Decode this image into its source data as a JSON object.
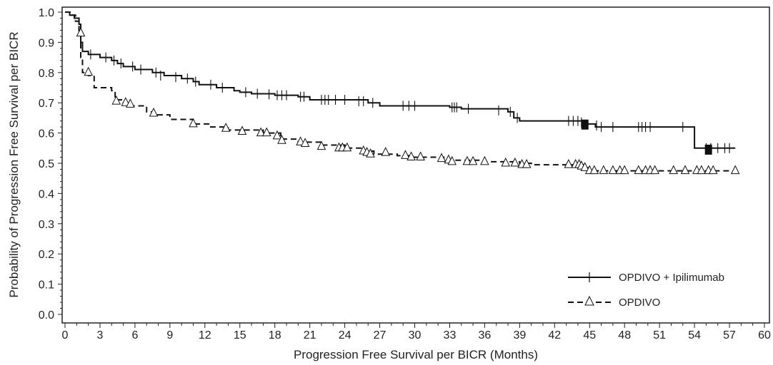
{
  "chart_data": {
    "type": "line",
    "title": "",
    "xlabel": "Progression Free Survival per BICR (Months)",
    "ylabel": "Probability of Progression Free Survival per BICR",
    "xlim": [
      0,
      60
    ],
    "ylim": [
      0,
      1.0
    ],
    "x_ticks": [
      0,
      3,
      6,
      9,
      12,
      15,
      18,
      21,
      24,
      27,
      30,
      33,
      36,
      39,
      42,
      45,
      48,
      51,
      54,
      57,
      60
    ],
    "x_tick_labels": [
      "0",
      "3",
      "6",
      "9",
      "12",
      "15",
      "18",
      "21",
      "24",
      "27",
      "30",
      "33",
      "36",
      "39",
      "42",
      "45",
      "48",
      "51",
      "54",
      "57",
      "60"
    ],
    "y_ticks": [
      0,
      0.1,
      0.2,
      0.3,
      0.4,
      0.5,
      0.6,
      0.7,
      0.8,
      0.9,
      1.0
    ],
    "y_tick_labels": [
      "0.0",
      "0.1",
      "0.2",
      "0.3",
      "0.4",
      "0.5",
      "0.6",
      "0.7",
      "0.8",
      "0.9",
      "1.0"
    ],
    "grid": false,
    "legend_position": "bottom-right",
    "series": [
      {
        "name": "OPDIVO + Ipilimumab",
        "line_style": "solid",
        "censor_marker": "plus",
        "color": "#111111",
        "points": [
          [
            0,
            1.0
          ],
          [
            0.4,
            0.99
          ],
          [
            0.8,
            0.98
          ],
          [
            1.2,
            0.96
          ],
          [
            1.35,
            0.9
          ],
          [
            1.5,
            0.87
          ],
          [
            2.0,
            0.86
          ],
          [
            3,
            0.85
          ],
          [
            4,
            0.84
          ],
          [
            4.5,
            0.83
          ],
          [
            5,
            0.82
          ],
          [
            6,
            0.81
          ],
          [
            7.5,
            0.8
          ],
          [
            8.5,
            0.79
          ],
          [
            10,
            0.78
          ],
          [
            11,
            0.77
          ],
          [
            11.5,
            0.76
          ],
          [
            13,
            0.75
          ],
          [
            14.5,
            0.74
          ],
          [
            15,
            0.735
          ],
          [
            16,
            0.73
          ],
          [
            18,
            0.725
          ],
          [
            20,
            0.72
          ],
          [
            21,
            0.71
          ],
          [
            26,
            0.7
          ],
          [
            27,
            0.69
          ],
          [
            33,
            0.685
          ],
          [
            34,
            0.68
          ],
          [
            38,
            0.67
          ],
          [
            38.5,
            0.65
          ],
          [
            39,
            0.64
          ],
          [
            44.5,
            0.63
          ],
          [
            45.5,
            0.62
          ],
          [
            53.5,
            0.62
          ],
          [
            54,
            0.55
          ],
          [
            57.5,
            0.55
          ]
        ],
        "censored": [
          [
            2.2,
            0.86
          ],
          [
            3.5,
            0.85
          ],
          [
            4.2,
            0.84
          ],
          [
            4.8,
            0.83
          ],
          [
            5.8,
            0.82
          ],
          [
            6.5,
            0.81
          ],
          [
            7.8,
            0.8
          ],
          [
            8.2,
            0.79
          ],
          [
            9.5,
            0.785
          ],
          [
            10.5,
            0.78
          ],
          [
            11.2,
            0.77
          ],
          [
            12.5,
            0.76
          ],
          [
            13.5,
            0.75
          ],
          [
            15.5,
            0.735
          ],
          [
            16.5,
            0.73
          ],
          [
            17.5,
            0.728
          ],
          [
            18.2,
            0.725
          ],
          [
            18.6,
            0.725
          ],
          [
            19.0,
            0.725
          ],
          [
            20.2,
            0.72
          ],
          [
            20.5,
            0.72
          ],
          [
            22.0,
            0.71
          ],
          [
            22.3,
            0.71
          ],
          [
            22.6,
            0.71
          ],
          [
            23.2,
            0.71
          ],
          [
            24.0,
            0.71
          ],
          [
            25.2,
            0.705
          ],
          [
            25.6,
            0.705
          ],
          [
            26.4,
            0.7
          ],
          [
            29.0,
            0.69
          ],
          [
            29.5,
            0.69
          ],
          [
            30.0,
            0.69
          ],
          [
            33.2,
            0.685
          ],
          [
            33.4,
            0.685
          ],
          [
            33.6,
            0.685
          ],
          [
            34.6,
            0.68
          ],
          [
            37.2,
            0.675
          ],
          [
            38.2,
            0.67
          ],
          [
            38.8,
            0.65
          ],
          [
            43.2,
            0.64
          ],
          [
            43.6,
            0.64
          ],
          [
            44.0,
            0.64
          ],
          [
            44.3,
            0.635
          ],
          [
            45.6,
            0.625
          ],
          [
            46.0,
            0.62
          ],
          [
            47.0,
            0.62
          ],
          [
            49.2,
            0.62
          ],
          [
            49.5,
            0.62
          ],
          [
            49.8,
            0.62
          ],
          [
            50.2,
            0.62
          ],
          [
            53.0,
            0.62
          ],
          [
            55.0,
            0.55
          ],
          [
            55.4,
            0.55
          ],
          [
            56.0,
            0.55
          ],
          [
            56.6,
            0.55
          ],
          [
            57.0,
            0.55
          ]
        ]
      },
      {
        "name": "OPDIVO",
        "line_style": "dashed",
        "censor_marker": "triangle",
        "color": "#111111",
        "points": [
          [
            0,
            1.0
          ],
          [
            0.6,
            0.99
          ],
          [
            0.9,
            0.97
          ],
          [
            1.2,
            0.93
          ],
          [
            1.35,
            0.85
          ],
          [
            1.5,
            0.8
          ],
          [
            2.0,
            0.79
          ],
          [
            2.5,
            0.75
          ],
          [
            4.0,
            0.74
          ],
          [
            4.3,
            0.71
          ],
          [
            5.0,
            0.7
          ],
          [
            5.5,
            0.69
          ],
          [
            7.0,
            0.67
          ],
          [
            7.5,
            0.66
          ],
          [
            9.0,
            0.645
          ],
          [
            11.0,
            0.63
          ],
          [
            12.5,
            0.62
          ],
          [
            14.0,
            0.61
          ],
          [
            17.0,
            0.6
          ],
          [
            18.5,
            0.58
          ],
          [
            20.0,
            0.57
          ],
          [
            22.0,
            0.56
          ],
          [
            24.0,
            0.55
          ],
          [
            25.5,
            0.54
          ],
          [
            26.5,
            0.53
          ],
          [
            28.5,
            0.525
          ],
          [
            29.5,
            0.52
          ],
          [
            32.5,
            0.515
          ],
          [
            33.0,
            0.51
          ],
          [
            36.0,
            0.505
          ],
          [
            39.0,
            0.5
          ],
          [
            40.0,
            0.495
          ],
          [
            43.5,
            0.495
          ],
          [
            44.5,
            0.485
          ],
          [
            45.0,
            0.475
          ],
          [
            57.5,
            0.475
          ]
        ],
        "censored": [
          [
            1.35,
            0.93
          ],
          [
            2.0,
            0.8
          ],
          [
            4.4,
            0.705
          ],
          [
            5.2,
            0.7
          ],
          [
            5.6,
            0.695
          ],
          [
            7.6,
            0.665
          ],
          [
            11.0,
            0.63
          ],
          [
            13.8,
            0.615
          ],
          [
            15.2,
            0.605
          ],
          [
            16.8,
            0.6
          ],
          [
            17.3,
            0.6
          ],
          [
            18.2,
            0.59
          ],
          [
            18.6,
            0.575
          ],
          [
            20.2,
            0.57
          ],
          [
            20.6,
            0.565
          ],
          [
            22.0,
            0.555
          ],
          [
            23.5,
            0.55
          ],
          [
            23.8,
            0.55
          ],
          [
            24.2,
            0.55
          ],
          [
            25.6,
            0.54
          ],
          [
            25.9,
            0.535
          ],
          [
            26.2,
            0.53
          ],
          [
            27.5,
            0.535
          ],
          [
            29.2,
            0.525
          ],
          [
            29.7,
            0.52
          ],
          [
            30.5,
            0.52
          ],
          [
            32.3,
            0.515
          ],
          [
            32.9,
            0.51
          ],
          [
            33.2,
            0.505
          ],
          [
            34.5,
            0.505
          ],
          [
            35.0,
            0.505
          ],
          [
            36.0,
            0.505
          ],
          [
            37.8,
            0.5
          ],
          [
            38.6,
            0.5
          ],
          [
            39.2,
            0.495
          ],
          [
            39.6,
            0.495
          ],
          [
            43.2,
            0.495
          ],
          [
            43.8,
            0.495
          ],
          [
            44.1,
            0.495
          ],
          [
            44.3,
            0.49
          ],
          [
            44.6,
            0.485
          ],
          [
            45.0,
            0.475
          ],
          [
            45.4,
            0.475
          ],
          [
            46.2,
            0.475
          ],
          [
            47.0,
            0.475
          ],
          [
            47.6,
            0.475
          ],
          [
            48.0,
            0.475
          ],
          [
            49.2,
            0.475
          ],
          [
            49.8,
            0.475
          ],
          [
            50.2,
            0.475
          ],
          [
            50.6,
            0.475
          ],
          [
            52.2,
            0.475
          ],
          [
            53.2,
            0.475
          ],
          [
            54.2,
            0.475
          ],
          [
            54.6,
            0.475
          ],
          [
            55.2,
            0.475
          ],
          [
            55.6,
            0.475
          ],
          [
            57.5,
            0.475
          ]
        ]
      }
    ],
    "solid_markers": [
      {
        "series": 0,
        "x": 44.6,
        "y": 0.628
      },
      {
        "series": 0,
        "x": 55.2,
        "y": 0.545
      }
    ]
  }
}
